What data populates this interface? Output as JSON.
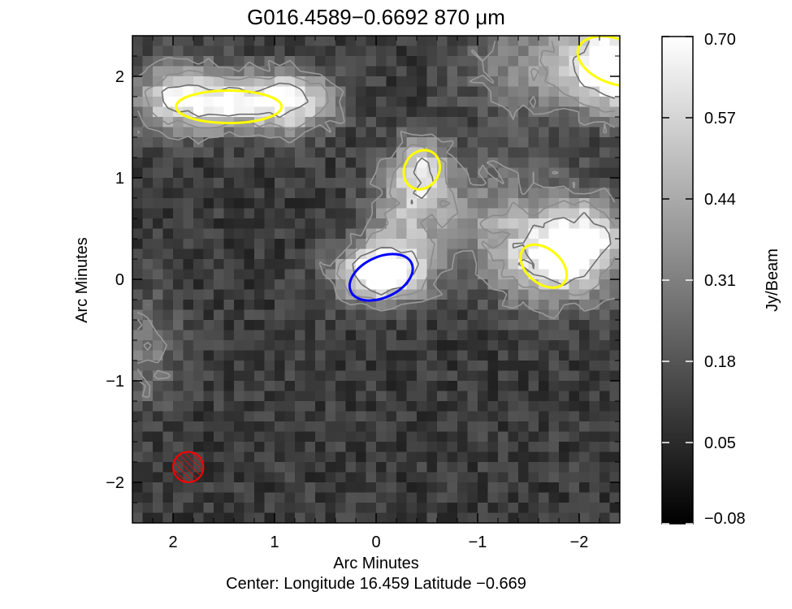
{
  "chart_data": {
    "type": "heatmap",
    "title": "G016.4589−0.6692  870 μm",
    "xlabel": "Arc Minutes",
    "ylabel": "Arc Minutes",
    "footer": "Center:  Longitude 16.459 Latitude −0.669",
    "x_range": [
      2.4,
      -2.4
    ],
    "y_range": [
      -2.4,
      2.4
    ],
    "x_ticks": [
      {
        "value": 2,
        "label": "2"
      },
      {
        "value": 1,
        "label": "1"
      },
      {
        "value": 0,
        "label": "0"
      },
      {
        "value": -1,
        "label": "−1"
      },
      {
        "value": -2,
        "label": "−2"
      }
    ],
    "y_ticks": [
      {
        "value": -2,
        "label": "−2"
      },
      {
        "value": -1,
        "label": "−1"
      },
      {
        "value": 0,
        "label": "0"
      },
      {
        "value": 1,
        "label": "1"
      },
      {
        "value": 2,
        "label": "2"
      }
    ],
    "colorbar": {
      "label": "Jy/Beam",
      "range": [
        -0.08,
        0.7
      ],
      "ticks": [
        "0.70",
        "0.57",
        "0.44",
        "0.31",
        "0.18",
        "0.05",
        "−0.08"
      ],
      "colormap": "grayscale"
    },
    "sources": [
      {
        "x": 1.45,
        "y": 1.7,
        "a": 0.52,
        "b": 0.16,
        "angle_deg": 0,
        "color": "#ffff00"
      },
      {
        "x": -0.45,
        "y": 1.08,
        "a": 0.2,
        "b": 0.17,
        "angle_deg": 60,
        "color": "#ffff00"
      },
      {
        "x": -1.65,
        "y": 0.13,
        "a": 0.26,
        "b": 0.17,
        "angle_deg": -40,
        "color": "#ffff00"
      },
      {
        "x": -2.35,
        "y": 2.15,
        "a": 0.38,
        "b": 0.22,
        "angle_deg": -20,
        "color": "#ffff00"
      },
      {
        "x": -0.05,
        "y": 0.02,
        "a": 0.33,
        "b": 0.2,
        "angle_deg": 25,
        "color": "#0000ff"
      }
    ],
    "beam": {
      "x": 1.85,
      "y": -1.85,
      "diameter": 0.3,
      "color": "#ff0000"
    },
    "emission_peaks": [
      {
        "x": -0.05,
        "y": 0.05,
        "peak": 0.7,
        "sx": 0.3,
        "sy": 0.2
      },
      {
        "x": -0.45,
        "y": 1.05,
        "peak": 0.45,
        "sx": 0.2,
        "sy": 0.25
      },
      {
        "x": -0.3,
        "y": 0.55,
        "peak": 0.3,
        "sx": 0.3,
        "sy": 0.35
      },
      {
        "x": 1.5,
        "y": 1.75,
        "peak": 0.5,
        "sx": 0.45,
        "sy": 0.2
      },
      {
        "x": 0.8,
        "y": 1.75,
        "peak": 0.45,
        "sx": 0.3,
        "sy": 0.22
      },
      {
        "x": 2.0,
        "y": 1.8,
        "peak": 0.3,
        "sx": 0.3,
        "sy": 0.25
      },
      {
        "x": -1.7,
        "y": 0.15,
        "peak": 0.45,
        "sx": 0.35,
        "sy": 0.3
      },
      {
        "x": -2.1,
        "y": 0.4,
        "peak": 0.5,
        "sx": 0.3,
        "sy": 0.3
      },
      {
        "x": -2.4,
        "y": 2.1,
        "peak": 0.7,
        "sx": 0.3,
        "sy": 0.3
      },
      {
        "x": -1.7,
        "y": 2.1,
        "peak": 0.3,
        "sx": 0.5,
        "sy": 0.35
      },
      {
        "x": -1.2,
        "y": 0.6,
        "peak": 0.25,
        "sx": 0.4,
        "sy": 0.4
      },
      {
        "x": 2.3,
        "y": -0.7,
        "peak": 0.2,
        "sx": 0.25,
        "sy": 0.4
      }
    ],
    "background_level": 0.1,
    "noise_amplitude": 0.08
  }
}
